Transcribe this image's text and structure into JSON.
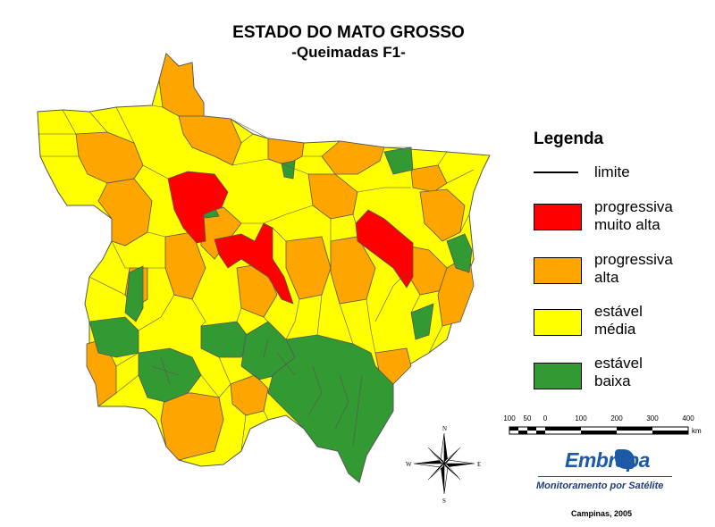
{
  "title": {
    "line1": "ESTADO DO MATO GROSSO",
    "line2": "-Queimadas F1-"
  },
  "legend": {
    "title": "Legenda",
    "items": [
      {
        "kind": "line",
        "label_lines": [
          "limite"
        ],
        "color": "#000000"
      },
      {
        "kind": "fill",
        "label_lines": [
          "progressiva",
          "muito alta"
        ],
        "color": "#ff0000"
      },
      {
        "kind": "fill",
        "label_lines": [
          "progressiva",
          "alta"
        ],
        "color": "#ffa500"
      },
      {
        "kind": "fill",
        "label_lines": [
          "estável",
          "média"
        ],
        "color": "#ffff00"
      },
      {
        "kind": "fill",
        "label_lines": [
          "estável",
          "baixa"
        ],
        "color": "#339933"
      }
    ]
  },
  "scale": {
    "ticks": [
      "100",
      "50",
      "0",
      "100",
      "200",
      "300",
      "400"
    ],
    "unit": "km"
  },
  "compass": {
    "n": "N",
    "s": "S",
    "e": "E",
    "w": "W"
  },
  "logo": {
    "brand": "Embrapa",
    "subtitle": "Monitoramento por Satélite"
  },
  "credit": "Campinas, 2005",
  "colors": {
    "muito_alta": "#ff0000",
    "alta": "#ffa500",
    "media": "#ffff00",
    "baixa": "#339933",
    "border": "#555555",
    "logo_blue": "#1d5aa5"
  }
}
